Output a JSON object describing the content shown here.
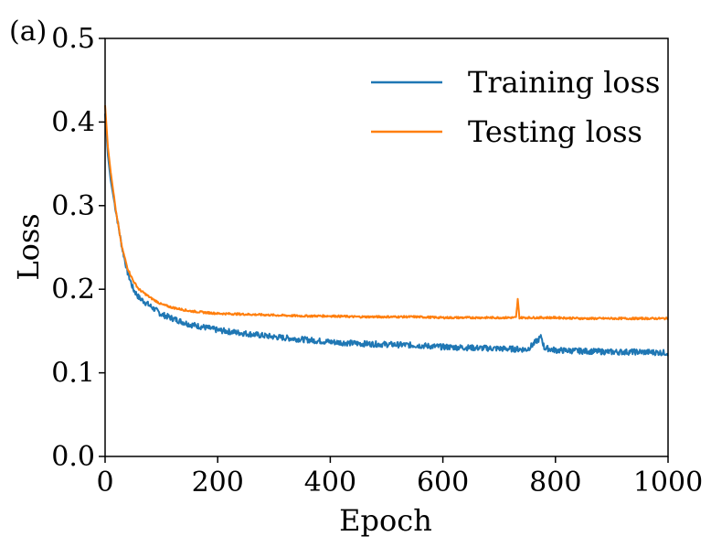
{
  "chart_data": {
    "type": "line",
    "panel_label": "(a)",
    "title": "",
    "xlabel": "Epoch",
    "ylabel": "Loss",
    "xlim": [
      0,
      1000
    ],
    "ylim": [
      0.0,
      0.5
    ],
    "xticks": [
      0,
      200,
      400,
      600,
      800,
      1000
    ],
    "xtick_labels": [
      "0",
      "200",
      "400",
      "600",
      "800",
      "1000"
    ],
    "yticks": [
      0.0,
      0.1,
      0.2,
      0.3,
      0.4,
      0.5
    ],
    "ytick_labels": [
      "0.0",
      "0.1",
      "0.2",
      "0.3",
      "0.4",
      "0.5"
    ],
    "grid": false,
    "legend_position": "top-right",
    "series": [
      {
        "name": "Training loss",
        "color": "#1f77b4",
        "x": [
          0,
          5,
          10,
          20,
          30,
          40,
          50,
          60,
          70,
          80,
          100,
          120,
          150,
          180,
          200,
          250,
          300,
          350,
          400,
          450,
          500,
          550,
          600,
          650,
          700,
          750,
          775,
          780,
          800,
          850,
          900,
          950,
          1000
        ],
        "y": [
          0.41,
          0.36,
          0.33,
          0.29,
          0.25,
          0.22,
          0.2,
          0.19,
          0.185,
          0.18,
          0.17,
          0.165,
          0.158,
          0.154,
          0.151,
          0.147,
          0.143,
          0.14,
          0.137,
          0.135,
          0.134,
          0.133,
          0.131,
          0.13,
          0.129,
          0.128,
          0.143,
          0.13,
          0.127,
          0.126,
          0.125,
          0.125,
          0.124
        ]
      },
      {
        "name": "Testing loss",
        "color": "#ff7f0e",
        "x": [
          0,
          5,
          10,
          20,
          30,
          40,
          50,
          60,
          70,
          80,
          100,
          120,
          150,
          180,
          200,
          250,
          300,
          350,
          400,
          450,
          500,
          550,
          600,
          650,
          700,
          730,
          733,
          736,
          750,
          800,
          850,
          900,
          950,
          1000
        ],
        "y": [
          0.42,
          0.37,
          0.34,
          0.29,
          0.25,
          0.225,
          0.21,
          0.2,
          0.195,
          0.19,
          0.182,
          0.178,
          0.174,
          0.172,
          0.171,
          0.17,
          0.169,
          0.168,
          0.168,
          0.167,
          0.167,
          0.167,
          0.166,
          0.166,
          0.166,
          0.166,
          0.188,
          0.166,
          0.166,
          0.166,
          0.165,
          0.165,
          0.165,
          0.165
        ]
      }
    ]
  }
}
